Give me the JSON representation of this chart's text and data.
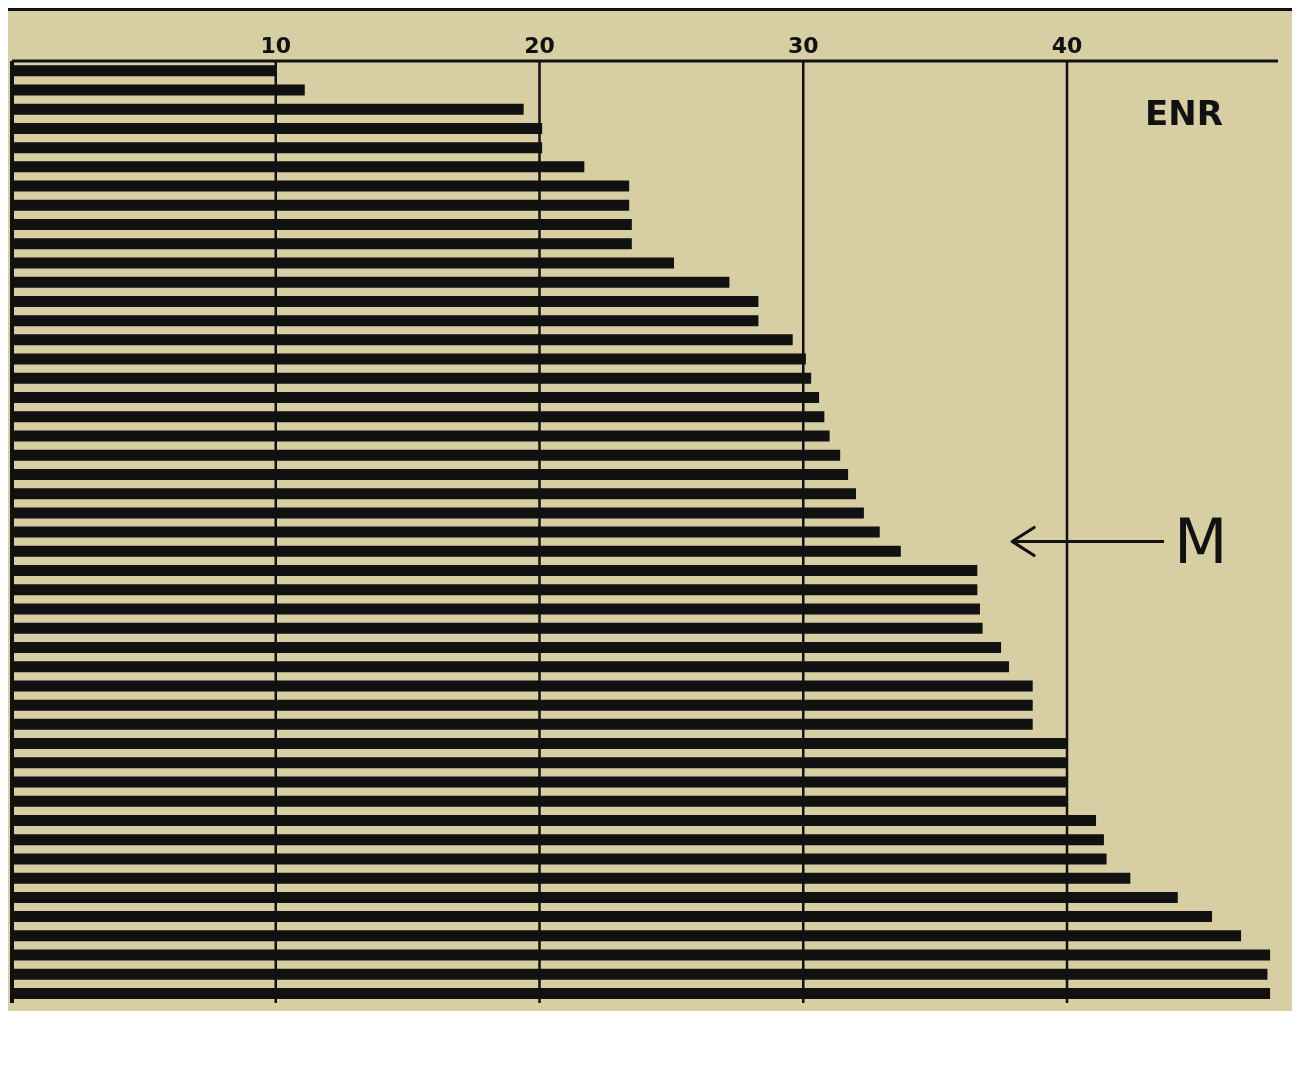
{
  "chart_data": {
    "type": "bar",
    "orientation": "horizontal",
    "categories": [
      null,
      null,
      null,
      null,
      null,
      null,
      null,
      null,
      null,
      null,
      null,
      null,
      null,
      null,
      null,
      null,
      null,
      null,
      null,
      null,
      null,
      null,
      null,
      null,
      null,
      null,
      null,
      null,
      null,
      null,
      null,
      null,
      null,
      null,
      null,
      null,
      null,
      null,
      null,
      null,
      null,
      null,
      null,
      null,
      null,
      null,
      null,
      null,
      null
    ],
    "values": [
      10.0,
      11.1,
      19.4,
      20.1,
      20.1,
      21.7,
      23.4,
      23.4,
      23.5,
      23.5,
      25.1,
      27.2,
      28.3,
      28.3,
      29.6,
      30.1,
      30.3,
      30.6,
      30.8,
      31.0,
      31.4,
      31.7,
      32.0,
      32.3,
      32.9,
      33.7,
      36.6,
      36.6,
      36.7,
      36.8,
      37.5,
      37.8,
      38.7,
      38.7,
      38.7,
      40.0,
      40.0,
      40.0,
      40.0,
      41.1,
      41.4,
      41.5,
      42.4,
      44.2,
      45.5,
      46.6,
      47.7,
      47.6,
      47.7
    ],
    "color": "#111111",
    "xlim": [
      0,
      48
    ],
    "xticks": [
      10,
      20,
      30,
      40
    ],
    "grid": "x",
    "annotations": [
      "ENR",
      "M"
    ]
  }
}
